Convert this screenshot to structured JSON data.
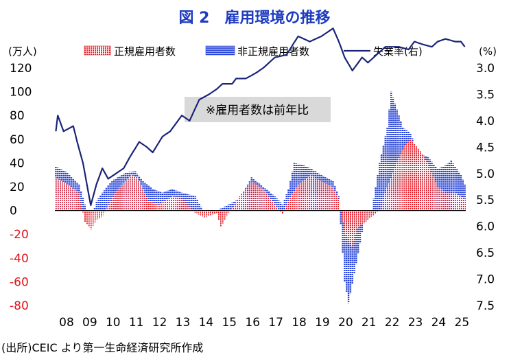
{
  "chart_data": {
    "type": "bar",
    "title": "図 2　雇用環境の推移",
    "left_axis_unit": "(万人)",
    "right_axis_unit": "(%)",
    "ylim_left": [
      -80,
      120
    ],
    "ylim_right": [
      3.0,
      7.5
    ],
    "right_axis_inverted": true,
    "left_ticks": [
      "120",
      "100",
      "80",
      "60",
      "40",
      "20",
      "0",
      "-20",
      "-40",
      "-60",
      "-80"
    ],
    "right_ticks": [
      "3.0",
      "3.5",
      "4.0",
      "4.5",
      "5.0",
      "5.5",
      "6.0",
      "6.5",
      "7.0",
      "7.5"
    ],
    "x_tick_labels": [
      "08",
      "09",
      "10",
      "11",
      "12",
      "13",
      "14",
      "15",
      "16",
      "17",
      "18",
      "19",
      "20",
      "21",
      "22",
      "23",
      "24",
      "25"
    ],
    "time_start": "2008-01",
    "time_end": "2025-08",
    "legend_position": "top",
    "annotation": "※雇用者数は前年比",
    "source": "(出所)CEIC より第一生命経済研究所作成",
    "colors": {
      "regular": "#e8202a",
      "non_regular": "#2b46d6",
      "unemployment": "#1a2478",
      "title": "#1f3cc1",
      "negative_tick": "#e0131a",
      "annotation_bg": "#d9d9d9"
    },
    "series": [
      {
        "name": "正規雇用者数",
        "kind": "bar",
        "keypoints": [
          [
            "2008-01",
            28
          ],
          [
            "2008-07",
            22
          ],
          [
            "2009-01",
            15
          ],
          [
            "2009-04",
            -10
          ],
          [
            "2009-07",
            -16
          ],
          [
            "2009-10",
            -8
          ],
          [
            "2010-01",
            -5
          ],
          [
            "2010-04",
            5
          ],
          [
            "2010-07",
            14
          ],
          [
            "2011-01",
            25
          ],
          [
            "2011-04",
            30
          ],
          [
            "2011-07",
            28
          ],
          [
            "2011-10",
            18
          ],
          [
            "2012-01",
            8
          ],
          [
            "2012-06",
            5
          ],
          [
            "2013-01",
            12
          ],
          [
            "2013-06",
            10
          ],
          [
            "2014-01",
            -2
          ],
          [
            "2014-06",
            -6
          ],
          [
            "2014-12",
            -2
          ],
          [
            "2015-02",
            -14
          ],
          [
            "2015-06",
            -2
          ],
          [
            "2015-12",
            12
          ],
          [
            "2016-06",
            25
          ],
          [
            "2016-12",
            18
          ],
          [
            "2017-06",
            5
          ],
          [
            "2017-10",
            -3
          ],
          [
            "2018-01",
            8
          ],
          [
            "2018-06",
            22
          ],
          [
            "2018-12",
            30
          ],
          [
            "2019-06",
            25
          ],
          [
            "2019-12",
            20
          ],
          [
            "2020-03",
            10
          ],
          [
            "2020-06",
            -20
          ],
          [
            "2020-10",
            -30
          ],
          [
            "2021-01",
            -15
          ],
          [
            "2021-06",
            -8
          ],
          [
            "2021-12",
            0
          ],
          [
            "2022-03",
            15
          ],
          [
            "2022-09",
            40
          ],
          [
            "2023-01",
            55
          ],
          [
            "2023-04",
            60
          ],
          [
            "2023-09",
            50
          ],
          [
            "2024-01",
            40
          ],
          [
            "2024-06",
            20
          ],
          [
            "2024-10",
            15
          ],
          [
            "2025-03",
            15
          ],
          [
            "2025-08",
            10
          ]
        ]
      },
      {
        "name": "非正規雇用者数",
        "kind": "bar",
        "keypoints": [
          [
            "2008-01",
            37
          ],
          [
            "2008-07",
            32
          ],
          [
            "2009-01",
            22
          ],
          [
            "2009-04",
            5
          ],
          [
            "2009-07",
            -8
          ],
          [
            "2009-10",
            8
          ],
          [
            "2010-01",
            15
          ],
          [
            "2010-06",
            25
          ],
          [
            "2011-01",
            32
          ],
          [
            "2011-06",
            33
          ],
          [
            "2011-10",
            25
          ],
          [
            "2012-03",
            18
          ],
          [
            "2012-08",
            15
          ],
          [
            "2013-01",
            18
          ],
          [
            "2013-06",
            15
          ],
          [
            "2014-01",
            12
          ],
          [
            "2014-06",
            -3
          ],
          [
            "2014-12",
            0
          ],
          [
            "2015-06",
            5
          ],
          [
            "2015-12",
            10
          ],
          [
            "2016-06",
            28
          ],
          [
            "2016-12",
            20
          ],
          [
            "2017-06",
            12
          ],
          [
            "2017-10",
            5
          ],
          [
            "2018-01",
            18
          ],
          [
            "2018-04",
            40
          ],
          [
            "2018-09",
            38
          ],
          [
            "2019-01",
            35
          ],
          [
            "2019-06",
            30
          ],
          [
            "2019-12",
            25
          ],
          [
            "2020-03",
            12
          ],
          [
            "2020-06",
            -60
          ],
          [
            "2020-08",
            -78
          ],
          [
            "2020-12",
            -45
          ],
          [
            "2021-04",
            -10
          ],
          [
            "2021-08",
            0
          ],
          [
            "2021-12",
            40
          ],
          [
            "2022-04",
            70
          ],
          [
            "2022-06",
            100
          ],
          [
            "2022-12",
            70
          ],
          [
            "2023-04",
            65
          ],
          [
            "2023-08",
            48
          ],
          [
            "2024-01",
            45
          ],
          [
            "2024-06",
            35
          ],
          [
            "2024-10",
            38
          ],
          [
            "2025-01",
            42
          ],
          [
            "2025-06",
            30
          ],
          [
            "2025-08",
            22
          ]
        ]
      },
      {
        "name": "失業率(右)",
        "kind": "line",
        "axis": "right",
        "keypoints": [
          [
            "2008-01",
            4.2
          ],
          [
            "2008-02",
            3.9
          ],
          [
            "2008-05",
            4.2
          ],
          [
            "2008-10",
            4.1
          ],
          [
            "2008-12",
            4.4
          ],
          [
            "2009-03",
            4.8
          ],
          [
            "2009-07",
            5.6
          ],
          [
            "2009-10",
            5.2
          ],
          [
            "2010-01",
            4.9
          ],
          [
            "2010-04",
            5.1
          ],
          [
            "2010-08",
            5.0
          ],
          [
            "2010-12",
            4.9
          ],
          [
            "2011-03",
            4.7
          ],
          [
            "2011-08",
            4.4
          ],
          [
            "2011-12",
            4.5
          ],
          [
            "2012-03",
            4.6
          ],
          [
            "2012-08",
            4.3
          ],
          [
            "2012-12",
            4.2
          ],
          [
            "2013-06",
            3.9
          ],
          [
            "2013-10",
            4.0
          ],
          [
            "2014-03",
            3.6
          ],
          [
            "2014-08",
            3.5
          ],
          [
            "2014-12",
            3.4
          ],
          [
            "2015-03",
            3.3
          ],
          [
            "2015-08",
            3.3
          ],
          [
            "2015-10",
            3.2
          ],
          [
            "2016-03",
            3.2
          ],
          [
            "2016-08",
            3.1
          ],
          [
            "2016-12",
            3.0
          ],
          [
            "2017-06",
            2.8
          ],
          [
            "2017-12",
            2.75
          ],
          [
            "2018-06",
            2.4
          ],
          [
            "2018-12",
            2.5
          ],
          [
            "2019-06",
            2.4
          ],
          [
            "2019-12",
            2.25
          ],
          [
            "2020-03",
            2.5
          ],
          [
            "2020-06",
            2.8
          ],
          [
            "2020-10",
            3.05
          ],
          [
            "2021-03",
            2.8
          ],
          [
            "2021-06",
            2.9
          ],
          [
            "2021-09",
            2.8
          ],
          [
            "2021-12",
            2.7
          ],
          [
            "2022-03",
            2.6
          ],
          [
            "2022-06",
            2.6
          ],
          [
            "2022-10",
            2.6
          ],
          [
            "2023-03",
            2.65
          ],
          [
            "2023-06",
            2.5
          ],
          [
            "2023-10",
            2.55
          ],
          [
            "2024-03",
            2.6
          ],
          [
            "2024-06",
            2.5
          ],
          [
            "2024-10",
            2.45
          ],
          [
            "2025-03",
            2.5
          ],
          [
            "2025-06",
            2.5
          ],
          [
            "2025-08",
            2.6
          ]
        ]
      }
    ]
  }
}
